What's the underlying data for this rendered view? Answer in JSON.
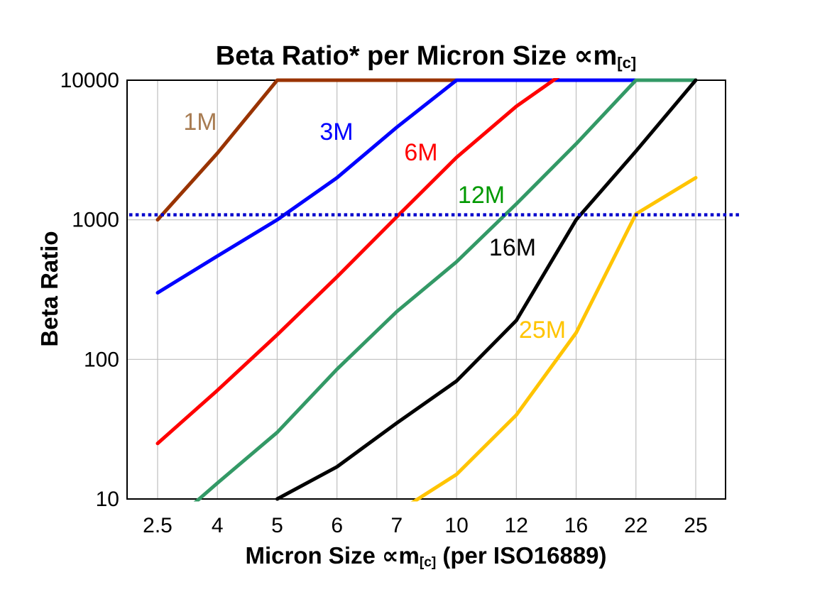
{
  "page": {
    "background": "#ffffff"
  },
  "chart_data": {
    "type": "line",
    "title": {
      "prefix": "Beta Ratio* per Micron Size ",
      "symbol": "∝m",
      "subscript": "[c]"
    },
    "x_axis": {
      "label_prefix": "Micron Size ",
      "label_symbol": "∝m",
      "label_subscript": "[c]",
      "label_suffix": " (per ISO16889)",
      "categories": [
        "2.5",
        "4",
        "5",
        "6",
        "7",
        "10",
        "12",
        "16",
        "22",
        "25"
      ]
    },
    "y_axis": {
      "label": "Beta Ratio",
      "scale": "log",
      "ticks": [
        10,
        100,
        1000,
        10000
      ],
      "range": [
        10,
        10000
      ]
    },
    "grid": {
      "vertical": true,
      "horizontal_at": [
        1000,
        100
      ],
      "color": "#BFBFBF"
    },
    "reference_line": {
      "value": 1000,
      "color": "#0000CC",
      "style": "dotted"
    },
    "series": [
      {
        "name": "1M",
        "color": "#993300",
        "label_color": "#A87C52",
        "values": [
          1000,
          3000,
          10000,
          10000,
          10000,
          10000,
          null,
          null,
          null,
          null
        ]
      },
      {
        "name": "3M",
        "color": "#0000FF",
        "label_color": "#0000FF",
        "values": [
          300,
          550,
          1000,
          2000,
          4600,
          10000,
          10000,
          10000,
          10000,
          null
        ]
      },
      {
        "name": "6M",
        "color": "#FF0000",
        "label_color": "#FF0000",
        "values": [
          25,
          60,
          150,
          390,
          1050,
          2800,
          6500,
          13000,
          null,
          null
        ]
      },
      {
        "name": "12M",
        "color": "#339966",
        "label_color": "#009900",
        "values": [
          5.5,
          13,
          30,
          85,
          220,
          500,
          1300,
          3500,
          10000,
          10000
        ]
      },
      {
        "name": "16M",
        "color": "#000000",
        "label_color": "#000000",
        "values": [
          null,
          null,
          10,
          17,
          35,
          70,
          190,
          1000,
          3100,
          10000
        ]
      },
      {
        "name": "25M",
        "color": "#FFC400",
        "label_color": "#FFC400",
        "values": [
          null,
          null,
          null,
          null,
          8,
          15,
          40,
          155,
          1100,
          2000
        ]
      }
    ]
  }
}
